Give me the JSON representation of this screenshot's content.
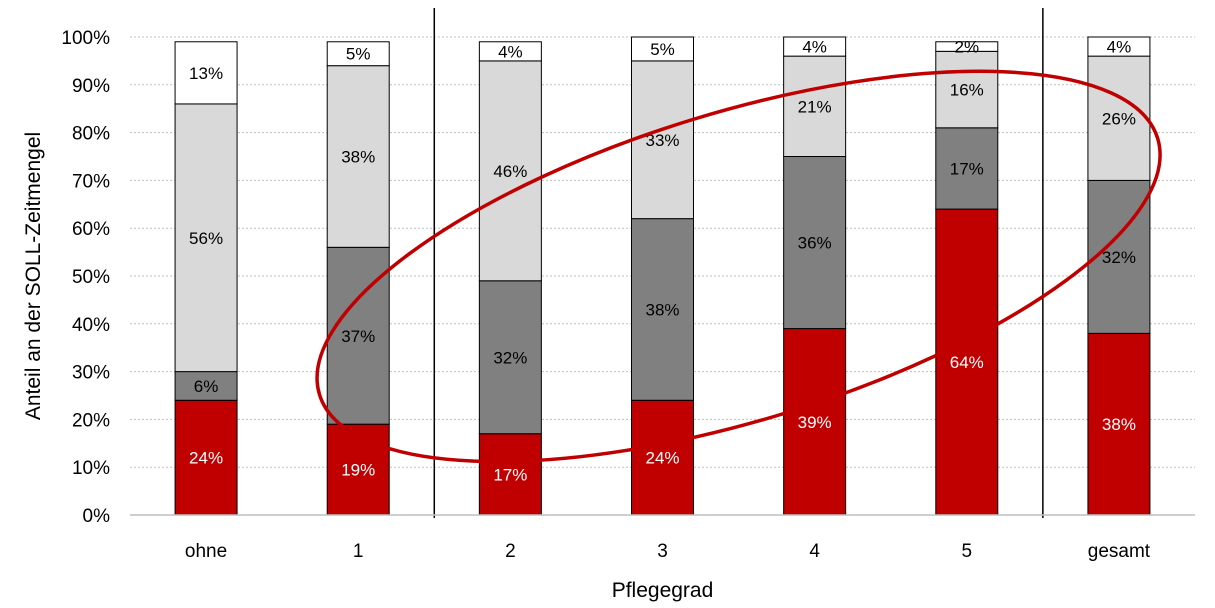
{
  "chart_data": {
    "type": "bar",
    "stacked": true,
    "xlabel": "Pflegegrad",
    "ylabel": "Anteil an der SOLL-Zeitmengel",
    "categories": [
      "ohne",
      "1",
      "2",
      "3",
      "4",
      "5",
      "gesamt"
    ],
    "ylim": [
      0,
      100
    ],
    "yticks": [
      "0%",
      "10%",
      "20%",
      "30%",
      "40%",
      "50%",
      "60%",
      "70%",
      "80%",
      "90%",
      "100%"
    ],
    "grid": true,
    "legend": "none",
    "series": [
      {
        "values": [
          24,
          19,
          17,
          24,
          39,
          64,
          38
        ],
        "labels": [
          "24%",
          "19%",
          "17%",
          "24%",
          "39%",
          "64%",
          "38%"
        ],
        "color": "#c00000",
        "label_color": "#ffffff"
      },
      {
        "values": [
          6,
          37,
          32,
          38,
          36,
          17,
          32
        ],
        "labels": [
          "6%",
          "37%",
          "32%",
          "38%",
          "36%",
          "17%",
          "32%"
        ],
        "color": "#808080",
        "label_color": "#000000"
      },
      {
        "values": [
          56,
          38,
          46,
          33,
          21,
          16,
          26
        ],
        "labels": [
          "56%",
          "38%",
          "46%",
          "33%",
          "21%",
          "16%",
          "26%"
        ],
        "color": "#d9d9d9",
        "label_color": "#000000"
      },
      {
        "values": [
          13,
          5,
          4,
          5,
          4,
          2,
          4
        ],
        "labels": [
          "13%",
          "5%",
          "4%",
          "5%",
          "4%",
          "2%",
          "4%"
        ],
        "color": "#ffffff",
        "label_color": "#000000"
      }
    ],
    "group_separators_after": [
      "1",
      "5"
    ],
    "highlight": {
      "shape": "ellipse",
      "color": "#c00000",
      "around": [
        "2",
        "3",
        "4",
        "5"
      ]
    }
  }
}
